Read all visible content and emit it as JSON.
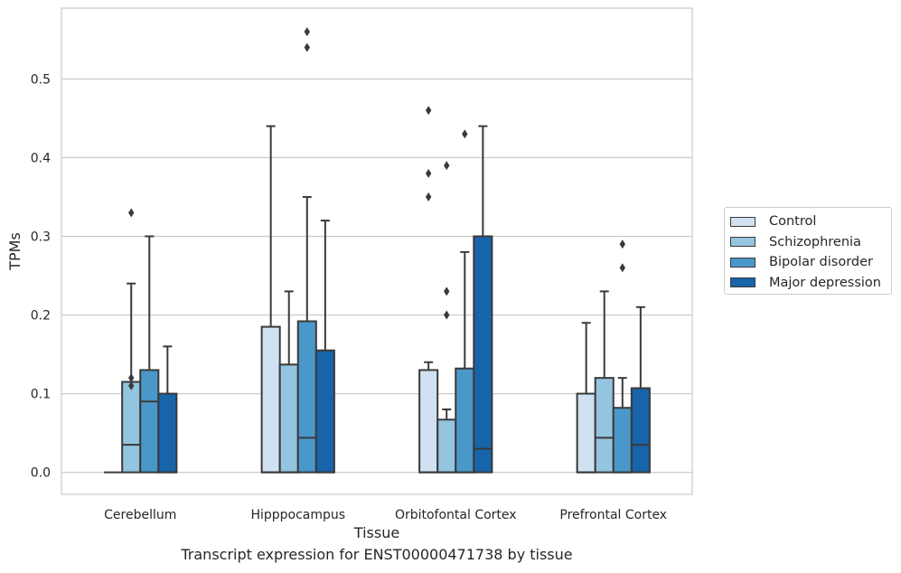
{
  "chart_data": {
    "type": "box",
    "title": "Transcript expression for ENST00000471738 by tissue",
    "xlabel": "Tissue",
    "ylabel": "TPMs",
    "ylim": [
      -0.028,
      0.59
    ],
    "yticks": [
      "0.0",
      "0.1",
      "0.2",
      "0.3",
      "0.4",
      "0.5"
    ],
    "ytick_values": [
      0.0,
      0.1,
      0.2,
      0.3,
      0.4,
      0.5
    ],
    "grid": "horizontal",
    "legend_position": "right",
    "categories": [
      "Cerebellum",
      "Hipppocampus",
      "Orbitofontal Cortex",
      "Prefrontal Cortex"
    ],
    "series": [
      {
        "name": "Control",
        "color": "#d0e1f2",
        "boxes": [
          {
            "q1": 0.0,
            "median": 0.0,
            "q3": 0.0,
            "whisker_low": 0.0,
            "whisker_high": 0.0,
            "outliers": []
          },
          {
            "q1": 0.0,
            "median": 0.0,
            "q3": 0.185,
            "whisker_low": 0.0,
            "whisker_high": 0.44,
            "outliers": []
          },
          {
            "q1": 0.0,
            "median": 0.0,
            "q3": 0.13,
            "whisker_low": 0.0,
            "whisker_high": 0.14,
            "outliers": [
              0.35,
              0.38,
              0.46
            ]
          },
          {
            "q1": 0.0,
            "median": 0.0,
            "q3": 0.1,
            "whisker_low": 0.0,
            "whisker_high": 0.19,
            "outliers": []
          }
        ]
      },
      {
        "name": "Schizophrenia",
        "color": "#94c4df",
        "boxes": [
          {
            "q1": 0.0,
            "median": 0.035,
            "q3": 0.115,
            "whisker_low": 0.0,
            "whisker_high": 0.24,
            "outliers": [
              0.11,
              0.12,
              0.33
            ]
          },
          {
            "q1": 0.0,
            "median": 0.0,
            "q3": 0.137,
            "whisker_low": 0.0,
            "whisker_high": 0.23,
            "outliers": []
          },
          {
            "q1": 0.0,
            "median": 0.0,
            "q3": 0.067,
            "whisker_low": 0.0,
            "whisker_high": 0.08,
            "outliers": [
              0.2,
              0.23,
              0.39
            ]
          },
          {
            "q1": 0.0,
            "median": 0.044,
            "q3": 0.12,
            "whisker_low": 0.0,
            "whisker_high": 0.23,
            "outliers": []
          }
        ]
      },
      {
        "name": "Bipolar disorder",
        "color": "#4a98c9",
        "boxes": [
          {
            "q1": 0.0,
            "median": 0.09,
            "q3": 0.13,
            "whisker_low": 0.0,
            "whisker_high": 0.3,
            "outliers": []
          },
          {
            "q1": 0.0,
            "median": 0.044,
            "q3": 0.192,
            "whisker_low": 0.0,
            "whisker_high": 0.35,
            "outliers": [
              0.54,
              0.56
            ]
          },
          {
            "q1": 0.0,
            "median": 0.0,
            "q3": 0.132,
            "whisker_low": 0.0,
            "whisker_high": 0.28,
            "outliers": [
              0.43
            ]
          },
          {
            "q1": 0.0,
            "median": 0.0,
            "q3": 0.082,
            "whisker_low": 0.0,
            "whisker_high": 0.12,
            "outliers": [
              0.26,
              0.29
            ]
          }
        ]
      },
      {
        "name": "Major depression",
        "color": "#1764ab",
        "boxes": [
          {
            "q1": 0.0,
            "median": 0.0,
            "q3": 0.1,
            "whisker_low": 0.0,
            "whisker_high": 0.16,
            "outliers": []
          },
          {
            "q1": 0.0,
            "median": 0.0,
            "q3": 0.155,
            "whisker_low": 0.0,
            "whisker_high": 0.32,
            "outliers": []
          },
          {
            "q1": 0.0,
            "median": 0.03,
            "q3": 0.3,
            "whisker_low": 0.0,
            "whisker_high": 0.44,
            "outliers": []
          },
          {
            "q1": 0.0,
            "median": 0.035,
            "q3": 0.107,
            "whisker_low": 0.0,
            "whisker_high": 0.21,
            "outliers": []
          }
        ]
      }
    ]
  }
}
